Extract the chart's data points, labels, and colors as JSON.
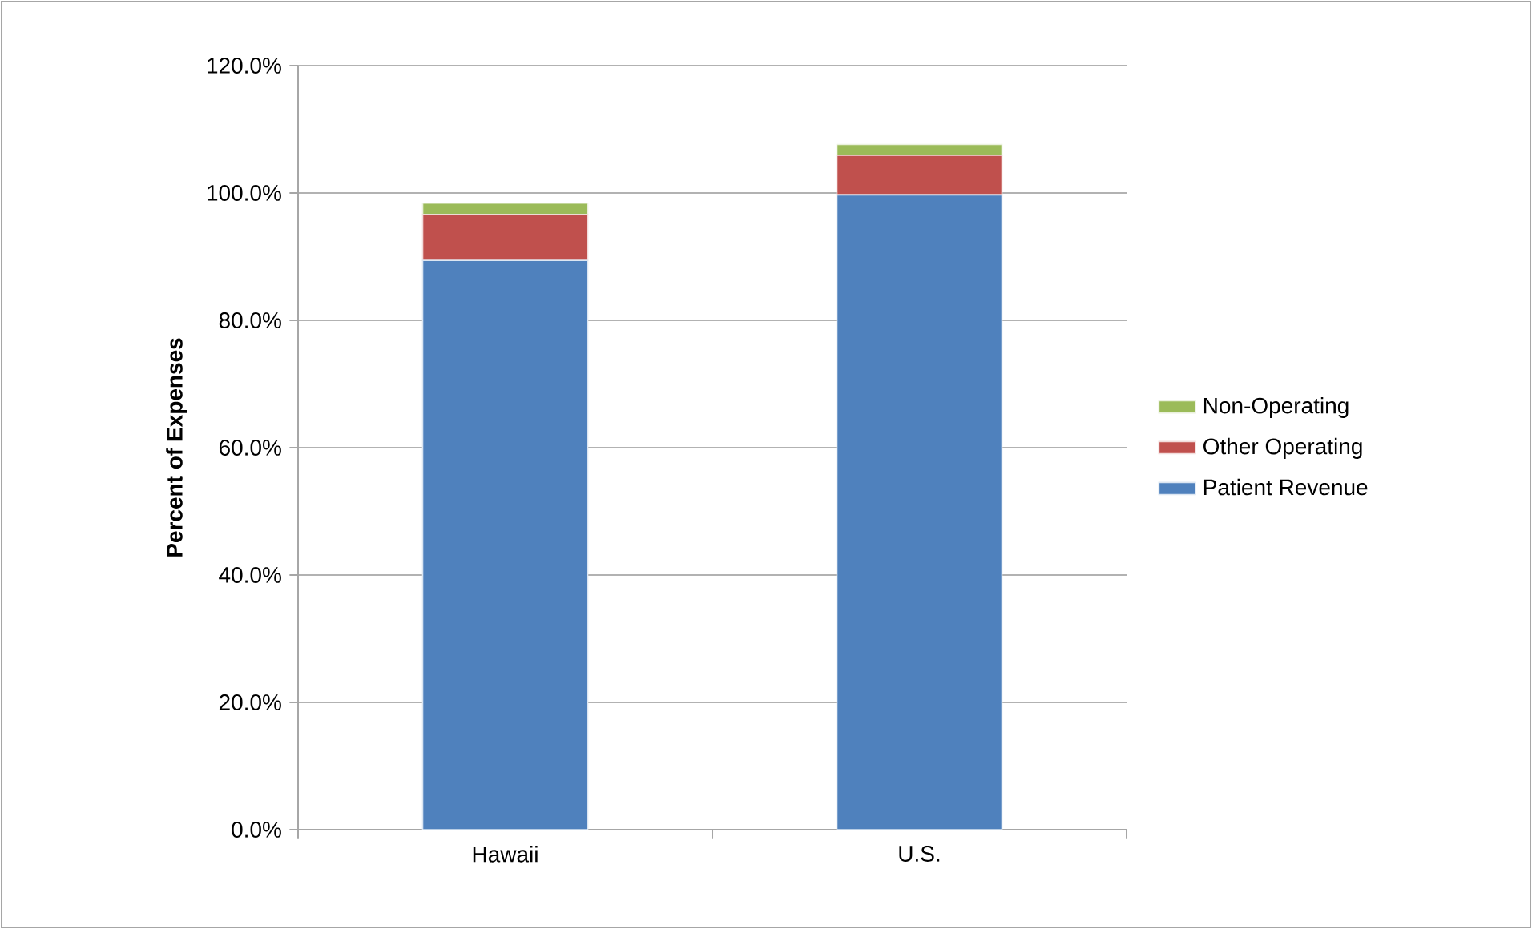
{
  "chart_data": {
    "type": "bar",
    "stacked": true,
    "ylabel": "Percent of Expenses",
    "categories": [
      "Hawaii",
      "U.S."
    ],
    "series": [
      {
        "name": "Patient Revenue",
        "color": "#4f81bd",
        "values": [
          89.4,
          99.7
        ]
      },
      {
        "name": "Other Operating",
        "color": "#c0504d",
        "values": [
          7.2,
          6.2
        ]
      },
      {
        "name": "Non-Operating",
        "color": "#9bbb59",
        "values": [
          1.8,
          1.7
        ]
      }
    ],
    "ylim": [
      0,
      120
    ],
    "yticks": [
      {
        "value": 0,
        "label": "0.0%"
      },
      {
        "value": 20,
        "label": "20.0%"
      },
      {
        "value": 40,
        "label": "40.0%"
      },
      {
        "value": 60,
        "label": "60.0%"
      },
      {
        "value": 80,
        "label": "80.0%"
      },
      {
        "value": 100,
        "label": "100.0%"
      },
      {
        "value": 120,
        "label": "120.0%"
      }
    ],
    "grid": "y",
    "legend": "right"
  }
}
